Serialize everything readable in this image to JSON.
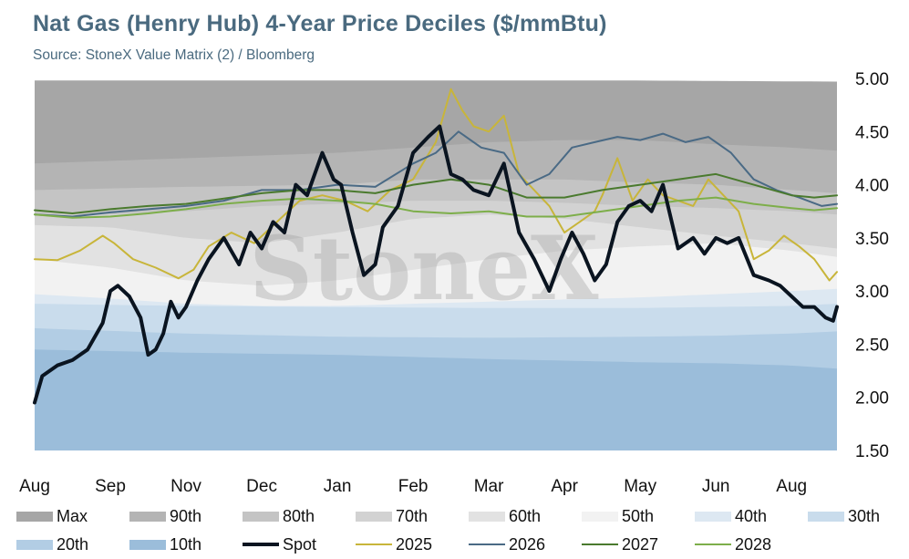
{
  "title": "Nat Gas (Henry Hub) 4-Year Price Deciles ($/mmBtu)",
  "subtitle": "Source: StoneX Value Matrix (2) / Bloomberg",
  "watermark": "StoneX",
  "chart_data": {
    "type": "area",
    "x_tick_labels": [
      "Aug",
      "Sep",
      "Nov",
      "Dec",
      "Jan",
      "Feb",
      "Mar",
      "Apr",
      "May",
      "Jun",
      "Aug"
    ],
    "x_tick_positions": [
      0,
      1,
      2,
      3,
      4,
      5,
      6,
      7,
      8,
      9,
      10
    ],
    "x_range": [
      0,
      10.6
    ],
    "y_tick_labels": [
      "5.00",
      "4.50",
      "4.00",
      "3.50",
      "3.00",
      "2.50",
      "2.00",
      "1.50"
    ],
    "ylim": [
      1.5,
      5.0
    ],
    "y_axis_side": "right",
    "grid": false,
    "legend_position": "bottom",
    "decile_bands": [
      {
        "name": "Max",
        "color": "#a6a6a6",
        "x": [
          0,
          3,
          6,
          8,
          10.6
        ],
        "values": [
          4.98,
          4.98,
          4.98,
          4.98,
          4.97
        ]
      },
      {
        "name": "90th",
        "color": "#b4b4b4",
        "x": [
          0,
          2,
          4,
          5,
          6,
          7,
          8,
          9,
          10,
          10.6
        ],
        "values": [
          4.2,
          4.25,
          4.3,
          4.35,
          4.4,
          4.42,
          4.42,
          4.38,
          4.35,
          4.32
        ]
      },
      {
        "name": "80th",
        "color": "#c4c4c4",
        "x": [
          0,
          2,
          4,
          5,
          6,
          7,
          8,
          9,
          10,
          10.6
        ],
        "values": [
          3.95,
          3.98,
          4.0,
          4.05,
          4.05,
          4.05,
          4.02,
          4.0,
          3.95,
          3.92
        ]
      },
      {
        "name": "70th",
        "color": "#d2d2d2",
        "x": [
          0,
          1,
          2,
          3,
          4,
          5,
          6,
          7,
          8,
          9,
          10,
          10.6
        ],
        "values": [
          3.72,
          3.72,
          3.75,
          3.8,
          3.82,
          3.85,
          3.85,
          3.83,
          3.8,
          3.78,
          3.75,
          3.72
        ]
      },
      {
        "name": "60th",
        "color": "#e2e2e2",
        "x": [
          0,
          1,
          2,
          3,
          4,
          5,
          6,
          7,
          8,
          9,
          10,
          10.6
        ],
        "values": [
          3.62,
          3.6,
          3.5,
          3.45,
          3.55,
          3.68,
          3.72,
          3.68,
          3.6,
          3.52,
          3.45,
          3.4
        ]
      },
      {
        "name": "50th",
        "color": "#f2f2f2",
        "x": [
          0,
          1,
          2,
          3,
          4,
          5,
          6,
          7,
          8,
          9,
          10,
          10.6
        ],
        "values": [
          3.3,
          3.22,
          3.1,
          3.05,
          3.1,
          3.2,
          3.3,
          3.38,
          3.42,
          3.45,
          3.38,
          3.32
        ]
      },
      {
        "name": "40th",
        "color": "#dde8f2",
        "x": [
          0,
          1,
          2,
          3,
          4,
          5,
          6,
          7,
          8,
          9,
          10,
          10.6
        ],
        "values": [
          2.97,
          2.93,
          2.88,
          2.86,
          2.86,
          2.88,
          2.9,
          2.92,
          2.94,
          2.97,
          3.0,
          3.02
        ]
      },
      {
        "name": "30th",
        "color": "#c9dcec",
        "x": [
          0,
          2,
          4,
          6,
          8,
          9,
          10,
          10.6
        ],
        "values": [
          2.88,
          2.86,
          2.85,
          2.84,
          2.84,
          2.85,
          2.86,
          2.88
        ]
      },
      {
        "name": "20th",
        "color": "#b2cde4",
        "x": [
          0,
          2,
          4,
          6,
          8,
          9,
          10,
          10.6
        ],
        "values": [
          2.65,
          2.6,
          2.57,
          2.56,
          2.57,
          2.58,
          2.6,
          2.62
        ]
      },
      {
        "name": "10th",
        "color": "#9bbdda",
        "x": [
          0,
          2,
          4,
          6,
          8,
          9,
          10,
          10.6
        ],
        "values": [
          2.45,
          2.42,
          2.4,
          2.36,
          2.33,
          2.32,
          2.3,
          2.27
        ]
      }
    ],
    "series": [
      {
        "name": "2025",
        "color": "#c8b53a",
        "width": 2,
        "x": [
          0,
          0.3,
          0.6,
          0.9,
          1.05,
          1.3,
          1.6,
          1.9,
          2.1,
          2.3,
          2.6,
          2.9,
          3.2,
          3.5,
          3.8,
          4.1,
          4.4,
          4.7,
          5.0,
          5.3,
          5.5,
          5.65,
          5.8,
          6.0,
          6.2,
          6.4,
          6.6,
          6.8,
          7.0,
          7.2,
          7.4,
          7.5,
          7.7,
          7.9,
          8.1,
          8.3,
          8.5,
          8.7,
          8.9,
          9.1,
          9.3,
          9.5,
          9.7,
          9.9,
          10.1,
          10.3,
          10.5,
          10.6
        ],
        "values": [
          3.3,
          3.29,
          3.38,
          3.52,
          3.45,
          3.3,
          3.22,
          3.12,
          3.2,
          3.42,
          3.55,
          3.45,
          3.65,
          3.85,
          3.9,
          3.85,
          3.75,
          3.95,
          4.05,
          4.4,
          4.9,
          4.7,
          4.55,
          4.5,
          4.65,
          4.1,
          3.95,
          3.8,
          3.55,
          3.65,
          3.75,
          3.9,
          4.25,
          3.85,
          4.05,
          3.9,
          3.85,
          3.8,
          4.05,
          3.9,
          3.75,
          3.3,
          3.38,
          3.52,
          3.42,
          3.3,
          3.1,
          3.18
        ]
      },
      {
        "name": "2026",
        "color": "#4a6a85",
        "width": 2,
        "x": [
          0,
          0.5,
          1.0,
          1.5,
          2.0,
          2.5,
          3.0,
          3.5,
          4.0,
          4.5,
          5.0,
          5.3,
          5.6,
          5.9,
          6.2,
          6.5,
          6.8,
          7.1,
          7.4,
          7.7,
          8.0,
          8.3,
          8.6,
          8.9,
          9.2,
          9.5,
          9.8,
          10.1,
          10.4,
          10.6
        ],
        "values": [
          3.72,
          3.7,
          3.74,
          3.77,
          3.8,
          3.85,
          3.95,
          3.95,
          4.0,
          3.98,
          4.2,
          4.3,
          4.5,
          4.35,
          4.3,
          4.0,
          4.1,
          4.35,
          4.4,
          4.45,
          4.42,
          4.48,
          4.4,
          4.45,
          4.3,
          4.05,
          3.95,
          3.88,
          3.8,
          3.82
        ]
      },
      {
        "name": "2027",
        "color": "#4a7a2e",
        "width": 2,
        "x": [
          0,
          0.5,
          1.0,
          1.5,
          2.0,
          2.5,
          3.0,
          3.5,
          4.0,
          4.5,
          5.0,
          5.5,
          6.0,
          6.5,
          7.0,
          7.5,
          8.0,
          8.5,
          9.0,
          9.5,
          10.0,
          10.3,
          10.6
        ],
        "values": [
          3.76,
          3.73,
          3.77,
          3.8,
          3.82,
          3.87,
          3.92,
          3.95,
          3.95,
          3.92,
          4.0,
          4.05,
          4.0,
          3.88,
          3.88,
          3.95,
          4.0,
          4.05,
          4.1,
          4.0,
          3.9,
          3.88,
          3.9
        ]
      },
      {
        "name": "2028",
        "color": "#7dae4a",
        "width": 2,
        "x": [
          0,
          0.5,
          1.0,
          1.5,
          2.0,
          2.5,
          3.0,
          3.5,
          4.0,
          4.5,
          5.0,
          5.5,
          6.0,
          6.5,
          7.0,
          7.5,
          8.0,
          8.5,
          9.0,
          9.5,
          10.0,
          10.3,
          10.6
        ],
        "values": [
          3.72,
          3.69,
          3.7,
          3.73,
          3.77,
          3.82,
          3.85,
          3.87,
          3.85,
          3.82,
          3.75,
          3.73,
          3.75,
          3.7,
          3.7,
          3.75,
          3.8,
          3.85,
          3.88,
          3.82,
          3.78,
          3.76,
          3.78
        ]
      },
      {
        "name": "Spot",
        "color": "#0a1420",
        "width": 4,
        "x": [
          0,
          0.1,
          0.3,
          0.5,
          0.7,
          0.9,
          1.0,
          1.1,
          1.25,
          1.4,
          1.5,
          1.6,
          1.7,
          1.8,
          1.9,
          2.0,
          2.15,
          2.3,
          2.5,
          2.7,
          2.85,
          3.0,
          3.15,
          3.3,
          3.45,
          3.6,
          3.8,
          3.95,
          4.05,
          4.2,
          4.35,
          4.5,
          4.6,
          4.8,
          5.0,
          5.2,
          5.35,
          5.5,
          5.65,
          5.8,
          6.0,
          6.2,
          6.4,
          6.6,
          6.8,
          6.95,
          7.1,
          7.25,
          7.4,
          7.55,
          7.7,
          7.85,
          8.0,
          8.15,
          8.3,
          8.5,
          8.7,
          8.85,
          9.0,
          9.15,
          9.3,
          9.5,
          9.7,
          9.85,
          10.0,
          10.15,
          10.3,
          10.45,
          10.55,
          10.6
        ],
        "values": [
          1.95,
          2.2,
          2.3,
          2.35,
          2.45,
          2.7,
          3.0,
          3.05,
          2.95,
          2.75,
          2.4,
          2.45,
          2.6,
          2.9,
          2.75,
          2.85,
          3.1,
          3.3,
          3.5,
          3.25,
          3.55,
          3.4,
          3.65,
          3.55,
          4.0,
          3.9,
          4.3,
          4.05,
          4.0,
          3.55,
          3.15,
          3.25,
          3.6,
          3.8,
          4.3,
          4.45,
          4.55,
          4.1,
          4.05,
          3.95,
          3.9,
          4.2,
          3.55,
          3.3,
          3.0,
          3.3,
          3.55,
          3.35,
          3.1,
          3.25,
          3.65,
          3.8,
          3.85,
          3.75,
          4.0,
          3.4,
          3.5,
          3.35,
          3.5,
          3.45,
          3.5,
          3.15,
          3.1,
          3.05,
          2.95,
          2.85,
          2.85,
          2.75,
          2.72,
          2.85
        ]
      }
    ]
  },
  "legend": {
    "items": [
      {
        "label": "Max",
        "kind": "swatch",
        "color": "#a6a6a6"
      },
      {
        "label": "90th",
        "kind": "swatch",
        "color": "#b4b4b4"
      },
      {
        "label": "80th",
        "kind": "swatch",
        "color": "#c4c4c4"
      },
      {
        "label": "70th",
        "kind": "swatch",
        "color": "#d2d2d2"
      },
      {
        "label": "60th",
        "kind": "swatch",
        "color": "#e2e2e2"
      },
      {
        "label": "50th",
        "kind": "swatch",
        "color": "#f2f2f2"
      },
      {
        "label": "40th",
        "kind": "swatch",
        "color": "#dde8f2"
      },
      {
        "label": "30th",
        "kind": "swatch",
        "color": "#c9dcec"
      },
      {
        "label": "20th",
        "kind": "swatch",
        "color": "#b2cde4"
      },
      {
        "label": "10th",
        "kind": "swatch",
        "color": "#9bbdda"
      },
      {
        "label": "Spot",
        "kind": "line",
        "color": "#0a1420"
      },
      {
        "label": "2025",
        "kind": "line",
        "color": "#c8b53a"
      },
      {
        "label": "2026",
        "kind": "line",
        "color": "#4a6a85"
      },
      {
        "label": "2027",
        "kind": "line",
        "color": "#4a7a2e"
      },
      {
        "label": "2028",
        "kind": "line",
        "color": "#7dae4a"
      }
    ]
  }
}
